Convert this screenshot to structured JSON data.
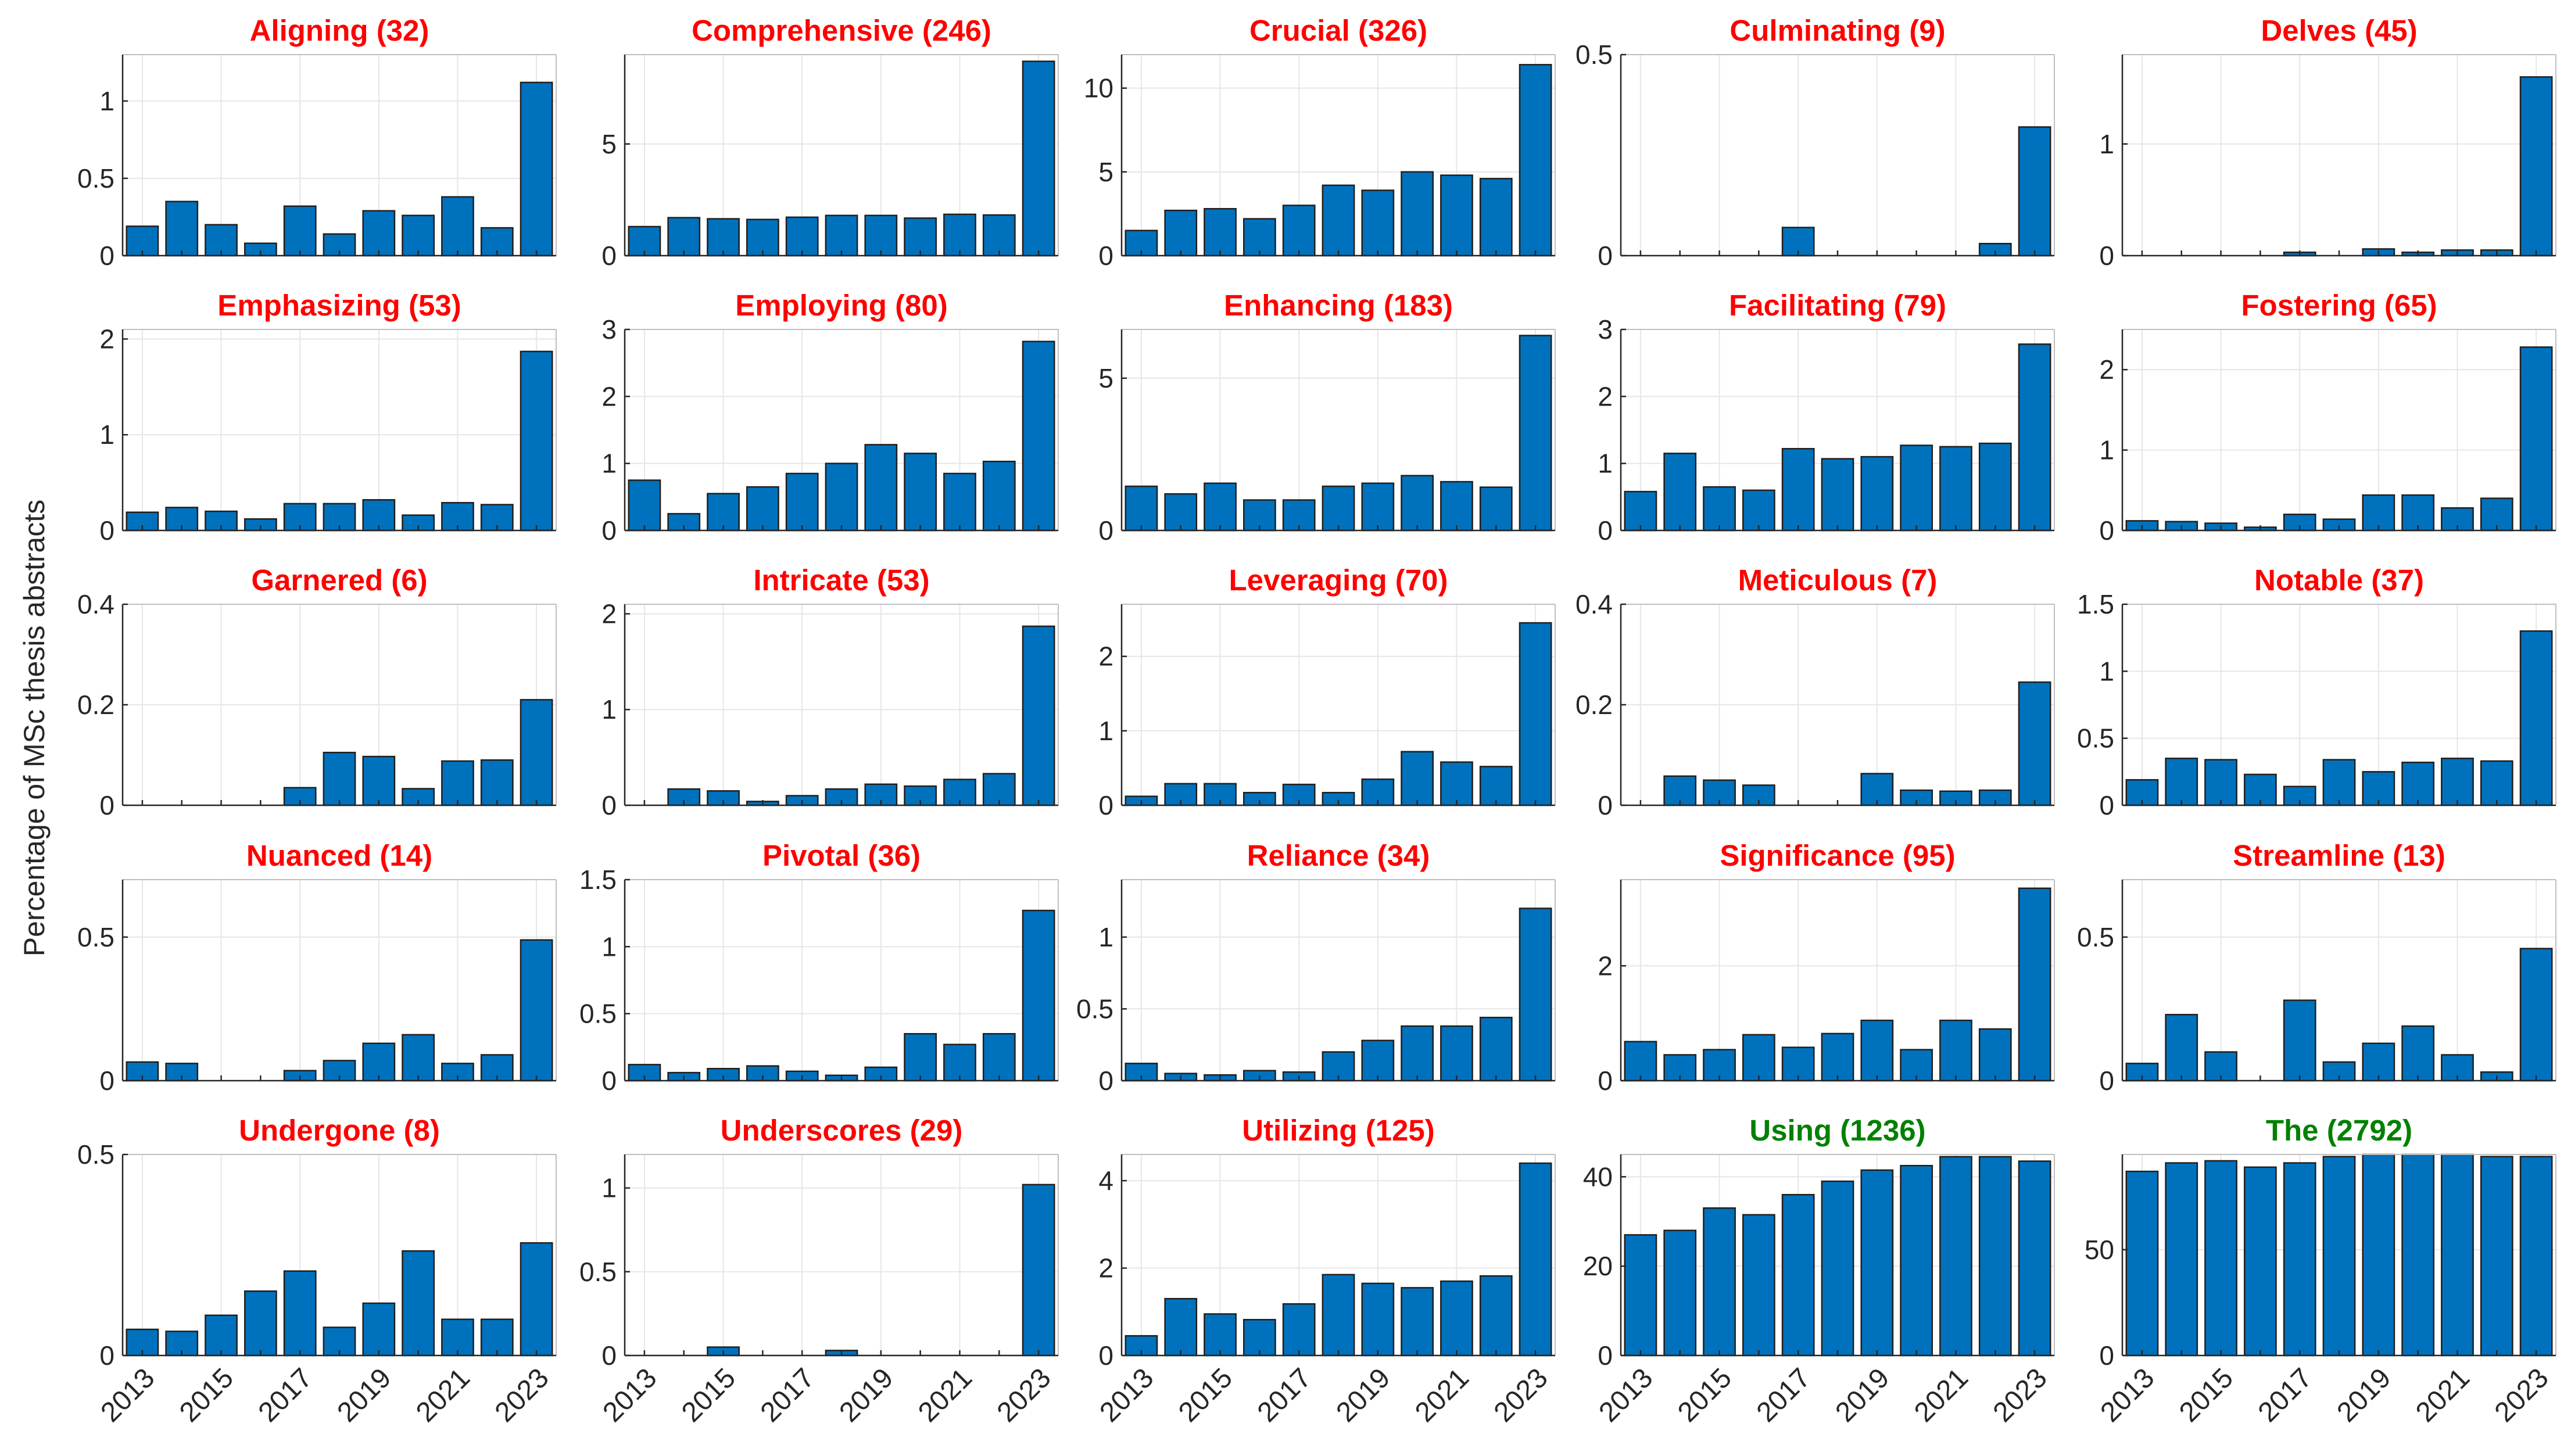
{
  "figure": {
    "ylabel": "Percentage of MSc thesis abstracts",
    "bar_color": "#0072BD",
    "bar_edge_color": "#1f1f1f",
    "highlight_title_color": "#FF0000",
    "reference_title_color": "#008000"
  },
  "chart_data": [
    {
      "type": "bar",
      "title": "Aligning (32)",
      "title_color": "#FF0000",
      "x": [
        2013,
        2014,
        2015,
        2016,
        2017,
        2018,
        2019,
        2020,
        2021,
        2022,
        2023
      ],
      "values": [
        0.19,
        0.35,
        0.2,
        0.08,
        0.32,
        0.14,
        0.29,
        0.26,
        0.38,
        0.18,
        1.12
      ],
      "ylim": [
        0,
        1.3
      ],
      "yticks": [
        0,
        0.5,
        1
      ],
      "ytick_labels": [
        "0",
        "0.5",
        "1"
      ],
      "xticks": [
        2013,
        2015,
        2017,
        2019,
        2021,
        2023
      ]
    },
    {
      "type": "bar",
      "title": "Comprehensive (246)",
      "title_color": "#FF0000",
      "x": [
        2013,
        2014,
        2015,
        2016,
        2017,
        2018,
        2019,
        2020,
        2021,
        2022,
        2023
      ],
      "values": [
        1.3,
        1.7,
        1.65,
        1.62,
        1.72,
        1.8,
        1.8,
        1.68,
        1.85,
        1.82,
        8.7
      ],
      "ylim": [
        0,
        9
      ],
      "yticks": [
        0,
        5
      ],
      "ytick_labels": [
        "0",
        "5"
      ],
      "xticks": [
        2013,
        2015,
        2017,
        2019,
        2021,
        2023
      ]
    },
    {
      "type": "bar",
      "title": "Crucial (326)",
      "title_color": "#FF0000",
      "x": [
        2013,
        2014,
        2015,
        2016,
        2017,
        2018,
        2019,
        2020,
        2021,
        2022,
        2023
      ],
      "values": [
        1.5,
        2.7,
        2.8,
        2.2,
        3.0,
        4.2,
        3.9,
        5.0,
        4.8,
        4.6,
        11.4
      ],
      "ylim": [
        0,
        12
      ],
      "yticks": [
        0,
        5,
        10
      ],
      "ytick_labels": [
        "0",
        "5",
        "10"
      ],
      "xticks": [
        2013,
        2015,
        2017,
        2019,
        2021,
        2023
      ]
    },
    {
      "type": "bar",
      "title": "Culminating (9)",
      "title_color": "#FF0000",
      "x": [
        2013,
        2014,
        2015,
        2016,
        2017,
        2018,
        2019,
        2020,
        2021,
        2022,
        2023
      ],
      "values": [
        0,
        0,
        0,
        0,
        0.07,
        0,
        0,
        0,
        0,
        0.03,
        0.32
      ],
      "ylim": [
        0,
        0.5
      ],
      "yticks": [
        0,
        0.5
      ],
      "ytick_labels": [
        "0",
        "0.5"
      ],
      "xticks": [
        2013,
        2015,
        2017,
        2019,
        2021,
        2023
      ]
    },
    {
      "type": "bar",
      "title": "Delves (45)",
      "title_color": "#FF0000",
      "x": [
        2013,
        2014,
        2015,
        2016,
        2017,
        2018,
        2019,
        2020,
        2021,
        2022,
        2023
      ],
      "values": [
        0,
        0,
        0,
        0,
        0.03,
        0,
        0.06,
        0.03,
        0.05,
        0.05,
        1.6
      ],
      "ylim": [
        0,
        1.8
      ],
      "yticks": [
        0,
        1
      ],
      "ytick_labels": [
        "0",
        "1"
      ],
      "xticks": [
        2013,
        2015,
        2017,
        2019,
        2021,
        2023
      ]
    },
    {
      "type": "bar",
      "title": "Emphasizing (53)",
      "title_color": "#FF0000",
      "x": [
        2013,
        2014,
        2015,
        2016,
        2017,
        2018,
        2019,
        2020,
        2021,
        2022,
        2023
      ],
      "values": [
        0.19,
        0.24,
        0.2,
        0.12,
        0.28,
        0.28,
        0.32,
        0.16,
        0.29,
        0.27,
        1.87
      ],
      "ylim": [
        0,
        2.1
      ],
      "yticks": [
        0,
        1,
        2
      ],
      "ytick_labels": [
        "0",
        "1",
        "2"
      ],
      "xticks": [
        2013,
        2015,
        2017,
        2019,
        2021,
        2023
      ]
    },
    {
      "type": "bar",
      "title": "Employing (80)",
      "title_color": "#FF0000",
      "x": [
        2013,
        2014,
        2015,
        2016,
        2017,
        2018,
        2019,
        2020,
        2021,
        2022,
        2023
      ],
      "values": [
        0.75,
        0.25,
        0.55,
        0.65,
        0.85,
        1.0,
        1.28,
        1.15,
        0.85,
        1.03,
        2.82
      ],
      "ylim": [
        0,
        3
      ],
      "yticks": [
        0,
        1,
        2,
        3
      ],
      "ytick_labels": [
        "0",
        "1",
        "2",
        "3"
      ],
      "xticks": [
        2013,
        2015,
        2017,
        2019,
        2021,
        2023
      ]
    },
    {
      "type": "bar",
      "title": "Enhancing (183)",
      "title_color": "#FF0000",
      "x": [
        2013,
        2014,
        2015,
        2016,
        2017,
        2018,
        2019,
        2020,
        2021,
        2022,
        2023
      ],
      "values": [
        1.45,
        1.2,
        1.55,
        1.0,
        1.0,
        1.45,
        1.55,
        1.8,
        1.6,
        1.42,
        6.4
      ],
      "ylim": [
        0,
        6.6
      ],
      "yticks": [
        0,
        5
      ],
      "ytick_labels": [
        "0",
        "5"
      ],
      "xticks": [
        2013,
        2015,
        2017,
        2019,
        2021,
        2023
      ]
    },
    {
      "type": "bar",
      "title": "Facilitating (79)",
      "title_color": "#FF0000",
      "x": [
        2013,
        2014,
        2015,
        2016,
        2017,
        2018,
        2019,
        2020,
        2021,
        2022,
        2023
      ],
      "values": [
        0.58,
        1.15,
        0.65,
        0.6,
        1.22,
        1.07,
        1.1,
        1.27,
        1.25,
        1.3,
        2.78
      ],
      "ylim": [
        0,
        3
      ],
      "yticks": [
        0,
        1,
        2,
        3
      ],
      "ytick_labels": [
        "0",
        "1",
        "2",
        "3"
      ],
      "xticks": [
        2013,
        2015,
        2017,
        2019,
        2021,
        2023
      ]
    },
    {
      "type": "bar",
      "title": "Fostering (65)",
      "title_color": "#FF0000",
      "x": [
        2013,
        2014,
        2015,
        2016,
        2017,
        2018,
        2019,
        2020,
        2021,
        2022,
        2023
      ],
      "values": [
        0.12,
        0.11,
        0.09,
        0.04,
        0.2,
        0.14,
        0.44,
        0.44,
        0.28,
        0.4,
        2.28
      ],
      "ylim": [
        0,
        2.5
      ],
      "yticks": [
        0,
        1,
        2
      ],
      "ytick_labels": [
        "0",
        "1",
        "2"
      ],
      "xticks": [
        2013,
        2015,
        2017,
        2019,
        2021,
        2023
      ]
    },
    {
      "type": "bar",
      "title": "Garnered (6)",
      "title_color": "#FF0000",
      "x": [
        2013,
        2014,
        2015,
        2016,
        2017,
        2018,
        2019,
        2020,
        2021,
        2022,
        2023
      ],
      "values": [
        0,
        0,
        0,
        0,
        0.035,
        0.105,
        0.097,
        0.033,
        0.088,
        0.09,
        0.21
      ],
      "ylim": [
        0,
        0.4
      ],
      "yticks": [
        0,
        0.2,
        0.4
      ],
      "ytick_labels": [
        "0",
        "0.2",
        "0.4"
      ],
      "xticks": [
        2013,
        2015,
        2017,
        2019,
        2021,
        2023
      ]
    },
    {
      "type": "bar",
      "title": "Intricate (53)",
      "title_color": "#FF0000",
      "x": [
        2013,
        2014,
        2015,
        2016,
        2017,
        2018,
        2019,
        2020,
        2021,
        2022,
        2023
      ],
      "values": [
        0,
        0.17,
        0.15,
        0.04,
        0.1,
        0.17,
        0.22,
        0.2,
        0.27,
        0.33,
        1.87
      ],
      "ylim": [
        0,
        2.1
      ],
      "yticks": [
        0,
        1,
        2
      ],
      "ytick_labels": [
        "0",
        "1",
        "2"
      ],
      "xticks": [
        2013,
        2015,
        2017,
        2019,
        2021,
        2023
      ]
    },
    {
      "type": "bar",
      "title": "Leveraging (70)",
      "title_color": "#FF0000",
      "x": [
        2013,
        2014,
        2015,
        2016,
        2017,
        2018,
        2019,
        2020,
        2021,
        2022,
        2023
      ],
      "values": [
        0.12,
        0.29,
        0.29,
        0.17,
        0.28,
        0.17,
        0.35,
        0.72,
        0.58,
        0.52,
        2.45
      ],
      "ylim": [
        0,
        2.7
      ],
      "yticks": [
        0,
        1,
        2
      ],
      "ytick_labels": [
        "0",
        "1",
        "2"
      ],
      "xticks": [
        2013,
        2015,
        2017,
        2019,
        2021,
        2023
      ]
    },
    {
      "type": "bar",
      "title": "Meticulous (7)",
      "title_color": "#FF0000",
      "x": [
        2013,
        2014,
        2015,
        2016,
        2017,
        2018,
        2019,
        2020,
        2021,
        2022,
        2023
      ],
      "values": [
        0,
        0.058,
        0.05,
        0.04,
        0,
        0,
        0.063,
        0.03,
        0.028,
        0.03,
        0.245
      ],
      "ylim": [
        0,
        0.4
      ],
      "yticks": [
        0,
        0.2,
        0.4
      ],
      "ytick_labels": [
        "0",
        "0.2",
        "0.4"
      ],
      "xticks": [
        2013,
        2015,
        2017,
        2019,
        2021,
        2023
      ]
    },
    {
      "type": "bar",
      "title": "Notable (37)",
      "title_color": "#FF0000",
      "x": [
        2013,
        2014,
        2015,
        2016,
        2017,
        2018,
        2019,
        2020,
        2021,
        2022,
        2023
      ],
      "values": [
        0.19,
        0.35,
        0.34,
        0.23,
        0.14,
        0.34,
        0.25,
        0.32,
        0.35,
        0.33,
        1.3
      ],
      "ylim": [
        0,
        1.5
      ],
      "yticks": [
        0,
        0.5,
        1,
        1.5
      ],
      "ytick_labels": [
        "0",
        "0.5",
        "1",
        "1.5"
      ],
      "xticks": [
        2013,
        2015,
        2017,
        2019,
        2021,
        2023
      ]
    },
    {
      "type": "bar",
      "title": "Nuanced (14)",
      "title_color": "#FF0000",
      "x": [
        2013,
        2014,
        2015,
        2016,
        2017,
        2018,
        2019,
        2020,
        2021,
        2022,
        2023
      ],
      "values": [
        0.065,
        0.06,
        0,
        0,
        0.035,
        0.07,
        0.13,
        0.16,
        0.06,
        0.09,
        0.49
      ],
      "ylim": [
        0,
        0.7
      ],
      "yticks": [
        0,
        0.5
      ],
      "ytick_labels": [
        "0",
        "0.5"
      ],
      "xticks": [
        2013,
        2015,
        2017,
        2019,
        2021,
        2023
      ]
    },
    {
      "type": "bar",
      "title": "Pivotal (36)",
      "title_color": "#FF0000",
      "x": [
        2013,
        2014,
        2015,
        2016,
        2017,
        2018,
        2019,
        2020,
        2021,
        2022,
        2023
      ],
      "values": [
        0.12,
        0.06,
        0.09,
        0.11,
        0.07,
        0.04,
        0.1,
        0.35,
        0.27,
        0.35,
        1.27
      ],
      "ylim": [
        0,
        1.5
      ],
      "yticks": [
        0,
        0.5,
        1,
        1.5
      ],
      "ytick_labels": [
        "0",
        "0.5",
        "1",
        "1.5"
      ],
      "xticks": [
        2013,
        2015,
        2017,
        2019,
        2021,
        2023
      ]
    },
    {
      "type": "bar",
      "title": "Reliance (34)",
      "title_color": "#FF0000",
      "x": [
        2013,
        2014,
        2015,
        2016,
        2017,
        2018,
        2019,
        2020,
        2021,
        2022,
        2023
      ],
      "values": [
        0.12,
        0.05,
        0.04,
        0.07,
        0.06,
        0.2,
        0.28,
        0.38,
        0.38,
        0.44,
        1.2
      ],
      "ylim": [
        0,
        1.4
      ],
      "yticks": [
        0,
        0.5,
        1
      ],
      "ytick_labels": [
        "0",
        "0.5",
        "1"
      ],
      "xticks": [
        2013,
        2015,
        2017,
        2019,
        2021,
        2023
      ]
    },
    {
      "type": "bar",
      "title": "Significance (95)",
      "title_color": "#FF0000",
      "x": [
        2013,
        2014,
        2015,
        2016,
        2017,
        2018,
        2019,
        2020,
        2021,
        2022,
        2023
      ],
      "values": [
        0.68,
        0.45,
        0.54,
        0.8,
        0.58,
        0.82,
        1.05,
        0.54,
        1.05,
        0.9,
        3.35
      ],
      "ylim": [
        0,
        3.5
      ],
      "yticks": [
        0,
        2
      ],
      "ytick_labels": [
        "0",
        "2"
      ],
      "xticks": [
        2013,
        2015,
        2017,
        2019,
        2021,
        2023
      ]
    },
    {
      "type": "bar",
      "title": "Streamline (13)",
      "title_color": "#FF0000",
      "x": [
        2013,
        2014,
        2015,
        2016,
        2017,
        2018,
        2019,
        2020,
        2021,
        2022,
        2023
      ],
      "values": [
        0.06,
        0.23,
        0.1,
        0,
        0.28,
        0.065,
        0.13,
        0.19,
        0.09,
        0.03,
        0.46
      ],
      "ylim": [
        0,
        0.7
      ],
      "yticks": [
        0,
        0.5
      ],
      "ytick_labels": [
        "0",
        "0.5"
      ],
      "xticks": [
        2013,
        2015,
        2017,
        2019,
        2021,
        2023
      ]
    },
    {
      "type": "bar",
      "title": "Undergone (8)",
      "title_color": "#FF0000",
      "x": [
        2013,
        2014,
        2015,
        2016,
        2017,
        2018,
        2019,
        2020,
        2021,
        2022,
        2023
      ],
      "values": [
        0.065,
        0.06,
        0.1,
        0.16,
        0.21,
        0.07,
        0.13,
        0.26,
        0.09,
        0.09,
        0.28
      ],
      "ylim": [
        0,
        0.5
      ],
      "yticks": [
        0,
        0.5
      ],
      "ytick_labels": [
        "0",
        "0.5"
      ],
      "xticks": [
        2013,
        2015,
        2017,
        2019,
        2021,
        2023
      ]
    },
    {
      "type": "bar",
      "title": "Underscores (29)",
      "title_color": "#FF0000",
      "x": [
        2013,
        2014,
        2015,
        2016,
        2017,
        2018,
        2019,
        2020,
        2021,
        2022,
        2023
      ],
      "values": [
        0,
        0,
        0.05,
        0,
        0,
        0.03,
        0,
        0,
        0,
        0,
        1.02
      ],
      "ylim": [
        0,
        1.2
      ],
      "yticks": [
        0,
        0.5,
        1
      ],
      "ytick_labels": [
        "0",
        "0.5",
        "1"
      ],
      "xticks": [
        2013,
        2015,
        2017,
        2019,
        2021,
        2023
      ]
    },
    {
      "type": "bar",
      "title": "Utilizing (125)",
      "title_color": "#FF0000",
      "x": [
        2013,
        2014,
        2015,
        2016,
        2017,
        2018,
        2019,
        2020,
        2021,
        2022,
        2023
      ],
      "values": [
        0.45,
        1.3,
        0.95,
        0.82,
        1.18,
        1.85,
        1.65,
        1.55,
        1.7,
        1.82,
        4.4
      ],
      "ylim": [
        0,
        4.6
      ],
      "yticks": [
        0,
        2,
        4
      ],
      "ytick_labels": [
        "0",
        "2",
        "4"
      ],
      "xticks": [
        2013,
        2015,
        2017,
        2019,
        2021,
        2023
      ]
    },
    {
      "type": "bar",
      "title": "Using (1236)",
      "title_color": "#008000",
      "x": [
        2013,
        2014,
        2015,
        2016,
        2017,
        2018,
        2019,
        2020,
        2021,
        2022,
        2023
      ],
      "values": [
        27,
        28,
        33,
        31.5,
        36,
        39,
        41.5,
        42.5,
        44.5,
        44.5,
        43.5
      ],
      "ylim": [
        0,
        45
      ],
      "yticks": [
        0,
        20,
        40
      ],
      "ytick_labels": [
        "0",
        "20",
        "40"
      ],
      "xticks": [
        2013,
        2015,
        2017,
        2019,
        2021,
        2023
      ]
    },
    {
      "type": "bar",
      "title": "The (2792)",
      "title_color": "#008000",
      "x": [
        2013,
        2014,
        2015,
        2016,
        2017,
        2018,
        2019,
        2020,
        2021,
        2022,
        2023
      ],
      "values": [
        87,
        91,
        92,
        89,
        91,
        94,
        95,
        95,
        95,
        94,
        94
      ],
      "ylim": [
        0,
        95
      ],
      "yticks": [
        0,
        50
      ],
      "ytick_labels": [
        "0",
        "50"
      ],
      "xticks": [
        2013,
        2015,
        2017,
        2019,
        2021,
        2023
      ]
    }
  ]
}
